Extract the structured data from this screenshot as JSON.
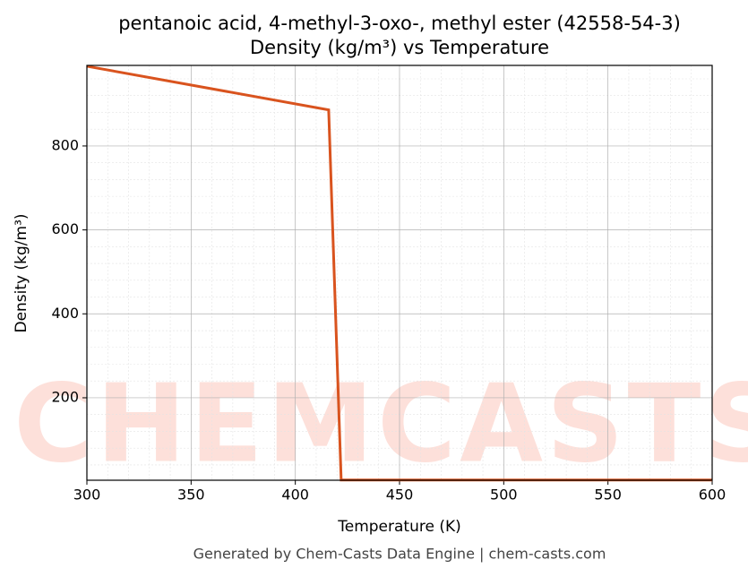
{
  "chart_data": {
    "type": "line",
    "title": "pentanoic acid, 4-methyl-3-oxo-, methyl ester (42558-54-3)",
    "subtitle": "Density (kg/m³) vs Temperature",
    "x_label": "Temperature (K)",
    "y_label": "Density (kg/m³)",
    "watermark": "CHEMCASTS",
    "footer": "Generated by Chem-Casts Data Engine | chem-casts.com",
    "x": [
      300,
      416,
      422,
      600
    ],
    "series": [
      {
        "name": "Density",
        "color": "#d9531e",
        "values": [
          990,
          886,
          4,
          4
        ]
      }
    ],
    "xlim": [
      300,
      600
    ],
    "xticks": [
      300,
      350,
      400,
      450,
      500,
      550,
      600
    ],
    "ylim": [
      3.5,
      992
    ],
    "yticks": [
      200,
      400,
      600,
      800
    ],
    "grid": true,
    "minor_grid": true
  }
}
